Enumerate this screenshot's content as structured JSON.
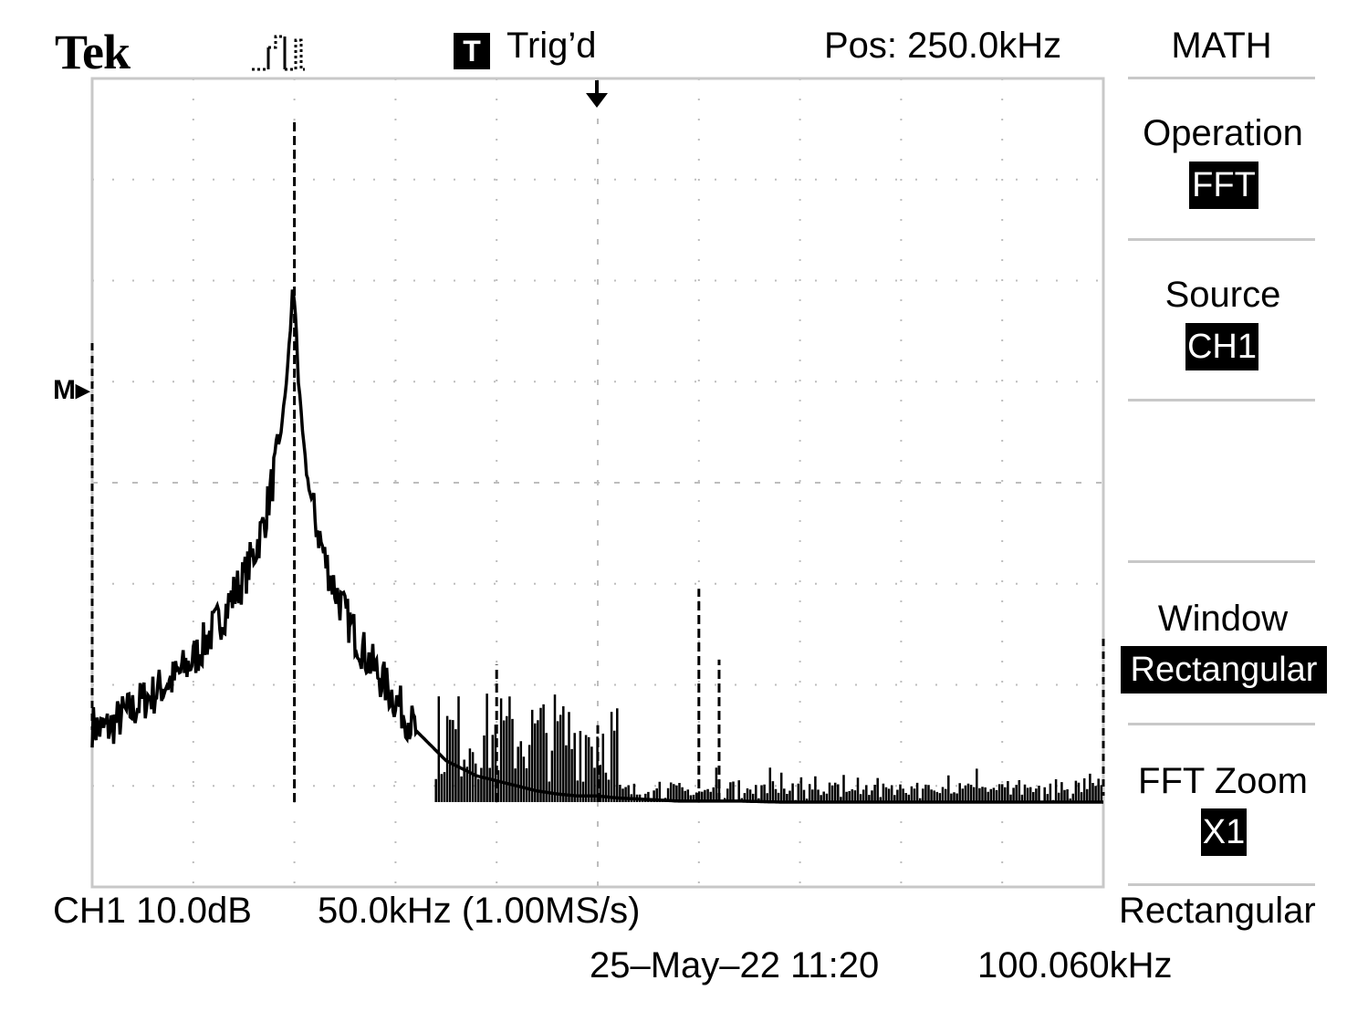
{
  "header": {
    "brand": "Tek",
    "trigger_badge": "T",
    "trigger_status": "Trig’d",
    "position": "Pos: 250.0kHz",
    "menu_title": "MATH",
    "acq_icon": "pulse-waveform-icon"
  },
  "menu": {
    "items": [
      {
        "label": "Operation",
        "value": "FFT"
      },
      {
        "label": "Source",
        "value": "CH1"
      },
      {
        "label": "Window",
        "value": "Rectangular"
      },
      {
        "label": "FFT Zoom",
        "value": "X1"
      }
    ]
  },
  "footer": {
    "channel_scale": "CH1 10.0dB",
    "freq_scale": "50.0kHz (1.00MS/s)",
    "window": "Rectangular",
    "datetime": "25–May–22 11:20",
    "readout": "100.060kHz"
  },
  "marker": {
    "ref_label": "M▸"
  },
  "colors": {
    "trace": "#000000",
    "grid": "#bdbdbd",
    "frame": "#c8c8c8",
    "background": "#ffffff"
  },
  "chart_data": {
    "type": "line",
    "xlabel": "",
    "ylabel": "",
    "xlim": [
      0,
      500
    ],
    "ylim": [
      -80,
      0
    ],
    "x_units": "kHz",
    "y_units": "dB (div index)",
    "grid": true,
    "peak": {
      "x": 100.06
    },
    "cursor_at_trigger": 250.0,
    "spikes": [
      {
        "x": 100.0,
        "y": -4.0
      },
      {
        "x": 200.0,
        "y": -58.0
      },
      {
        "x": 250.0,
        "y": -64.0
      },
      {
        "x": 300.0,
        "y": -50.5
      },
      {
        "x": 310.0,
        "y": -57.5
      }
    ],
    "series": [
      {
        "name": "",
        "x": [
          0,
          5,
          10,
          15,
          20,
          25,
          30,
          35,
          40,
          45,
          50,
          55,
          60,
          65,
          70,
          75,
          80,
          85,
          88,
          91,
          94,
          96,
          98,
          99,
          100,
          101,
          102,
          104,
          106,
          109,
          112,
          115,
          120,
          125,
          130,
          135,
          140,
          145,
          150,
          155,
          160,
          165,
          170,
          175,
          180,
          190,
          200,
          210,
          220,
          230,
          240,
          250,
          260,
          270,
          280,
          290,
          300,
          320,
          340,
          360,
          380,
          400,
          420,
          440,
          460,
          480,
          500
        ],
        "y": [
          -64.0,
          -64.5,
          -64.0,
          -63.0,
          -62.5,
          -61.5,
          -61.0,
          -60.0,
          -59.5,
          -58.5,
          -57.5,
          -56.0,
          -54.5,
          -53.0,
          -51.0,
          -49.5,
          -47.0,
          -44.0,
          -41.0,
          -38.0,
          -34.0,
          -30.0,
          -25.0,
          -21.0,
          -22.0,
          -25.0,
          -30.0,
          -35.0,
          -39.0,
          -42.5,
          -45.0,
          -47.5,
          -50.5,
          -53.0,
          -55.0,
          -57.0,
          -58.5,
          -60.0,
          -61.5,
          -63.0,
          -64.5,
          -65.5,
          -66.5,
          -67.5,
          -68.0,
          -69.0,
          -69.5,
          -70.0,
          -70.5,
          -70.8,
          -71.0,
          -71.0,
          -71.2,
          -71.3,
          -71.4,
          -71.5,
          -71.5,
          -71.5,
          -71.6,
          -71.6,
          -71.6,
          -71.6,
          -71.6,
          -71.6,
          -71.6,
          -71.6,
          -71.6
        ]
      }
    ]
  }
}
